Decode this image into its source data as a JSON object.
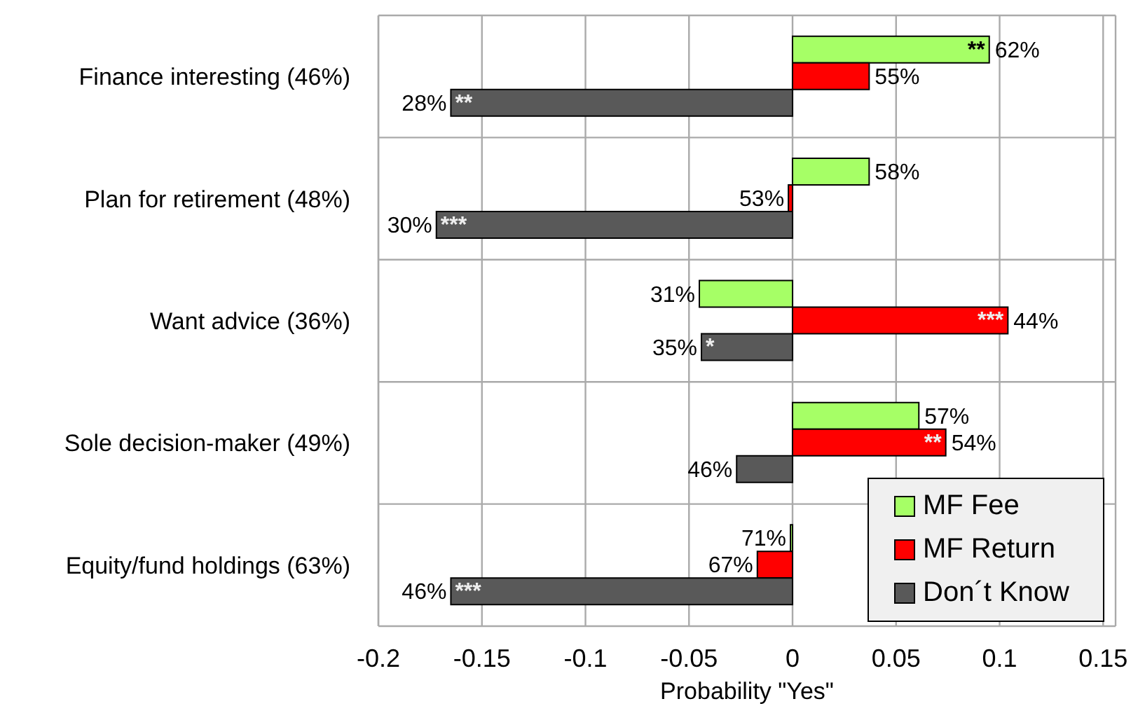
{
  "chart_data": {
    "type": "bar",
    "orientation": "horizontal",
    "xlabel": "Probability \"Yes\"",
    "categories": [
      "Finance interesting (46%)",
      "Plan for retirement (48%)",
      "Want advice (36%)",
      "Sole decision-maker (49%)",
      "Equity/fund holdings (63%)"
    ],
    "series": [
      {
        "name": "MF Fee",
        "color": "#a6ff66",
        "values": [
          0.095,
          0.037,
          -0.045,
          0.061,
          -0.001
        ]
      },
      {
        "name": "MF Return",
        "color": "#ff0000",
        "values": [
          0.037,
          -0.002,
          0.104,
          0.074,
          -0.017
        ]
      },
      {
        "name": "Don´t Know",
        "color": "#595959",
        "values": [
          -0.165,
          -0.172,
          -0.044,
          -0.027,
          -0.165
        ]
      }
    ],
    "annotations": [
      "62%",
      "55%",
      "28%",
      "58%",
      "53%",
      "30%",
      "31%",
      "44%",
      "35%",
      "57%",
      "54%",
      "46%",
      "71%",
      "67%",
      "46%",
      "**",
      "**",
      "***",
      "***",
      "*",
      "**",
      "***"
    ],
    "xlim": [
      -0.2,
      0.156
    ],
    "xticks": [
      -0.2,
      -0.15,
      -0.1,
      -0.05,
      0,
      0.05,
      0.1,
      0.15
    ],
    "grid": true,
    "legend": "bottom right"
  }
}
